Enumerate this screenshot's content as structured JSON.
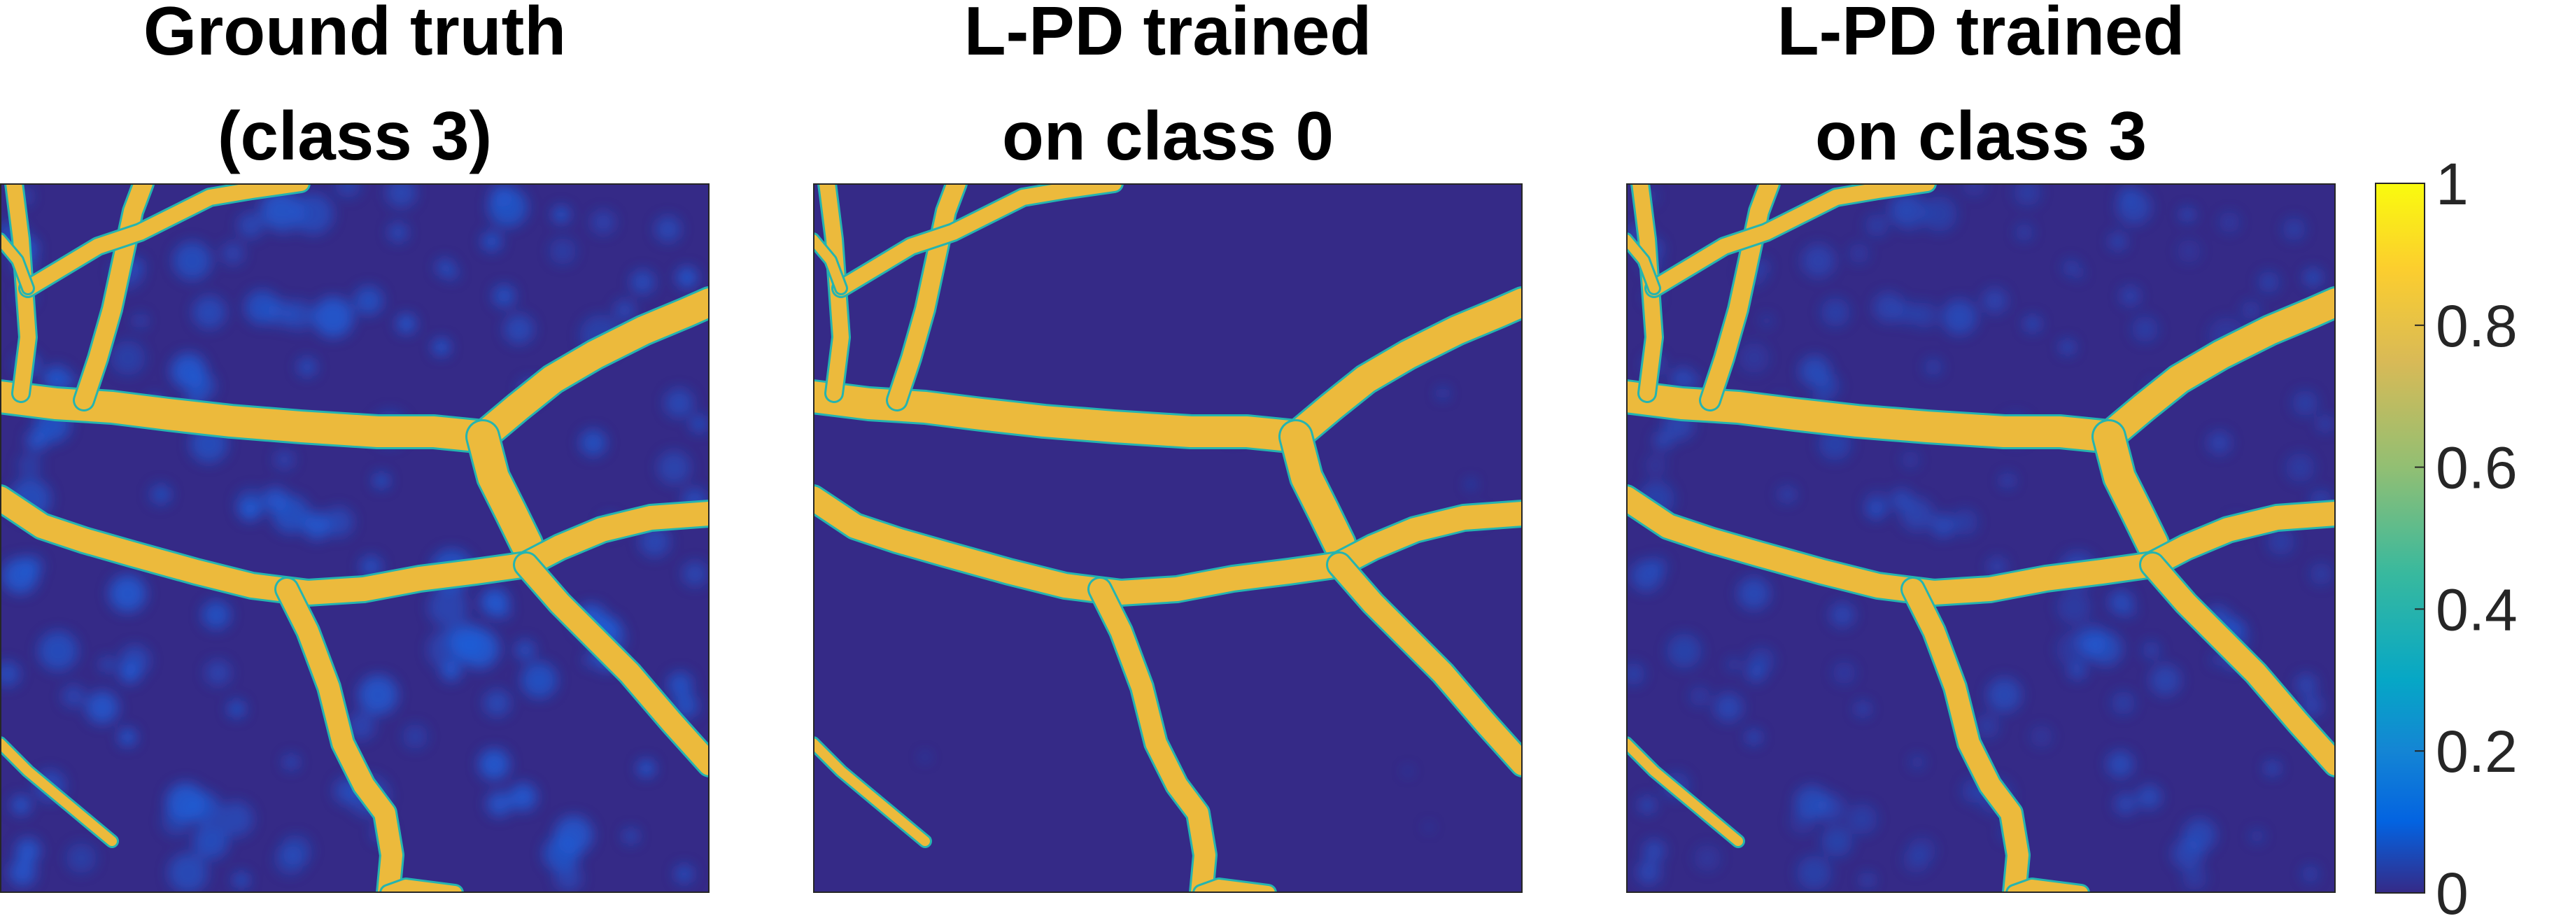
{
  "panels": [
    {
      "title_line1": "Ground truth",
      "title_line2": "(class 3)",
      "noise": "heavy"
    },
    {
      "title_line1": "L-PD trained",
      "title_line2": "on class 0",
      "noise": "none"
    },
    {
      "title_line1": "L-PD trained",
      "title_line2": "on class 3",
      "noise": "medium"
    }
  ],
  "colorbar": {
    "colormap": "parula",
    "range": [
      0,
      1
    ],
    "ticks": [
      "0",
      "0.2",
      "0.4",
      "0.6",
      "0.8",
      "1"
    ]
  },
  "colors": {
    "background": "#352a87",
    "vessel": "#ecba3c",
    "blob": "#1f5ed6"
  }
}
